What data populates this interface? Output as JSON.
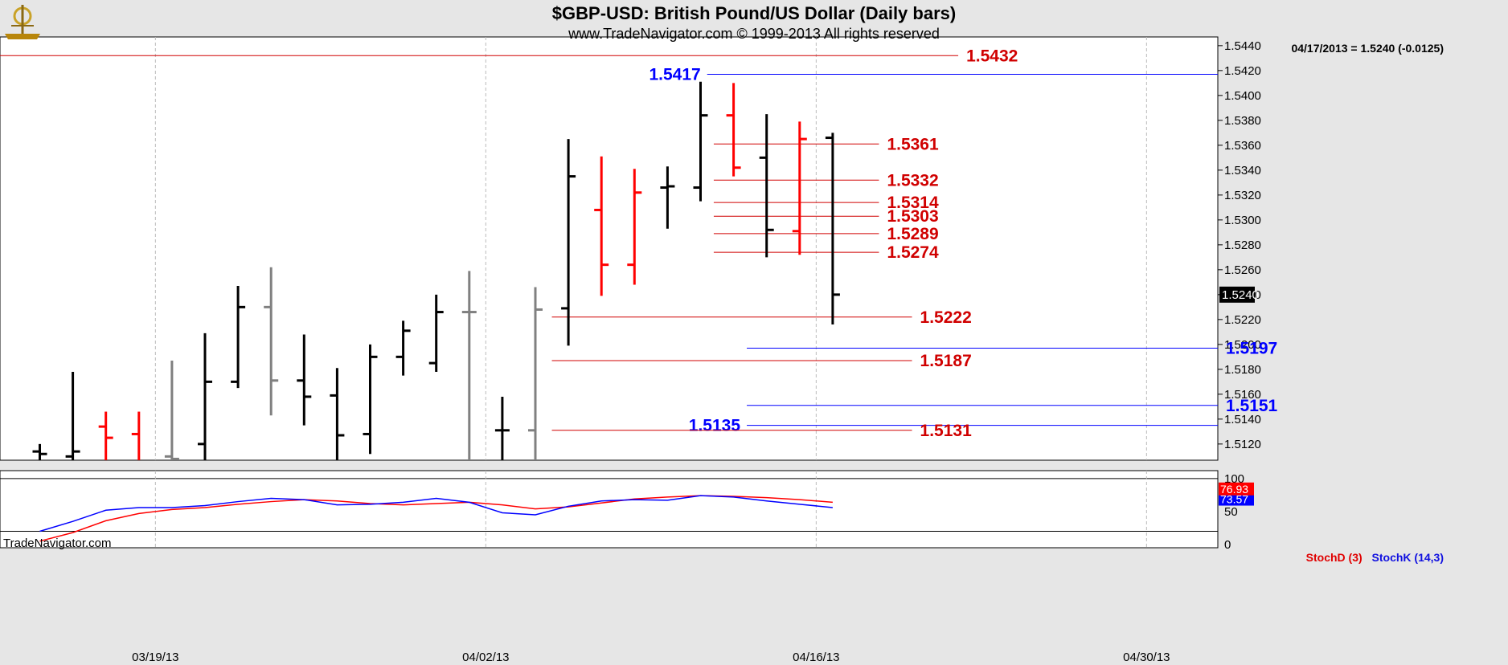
{
  "header": {
    "title": "$GBP-USD:  British Pound/US Dollar  (Daily bars)",
    "subtitle": "www.TradeNavigator.com © 1999-2013 All rights reserved",
    "watermark": "TradeNavigator.com",
    "last_info": "04/17/2013 = 1.5240 (-0.0125)"
  },
  "colors": {
    "background": "#ffffff",
    "frame": "#e6e6e6",
    "bar_up": "#000000",
    "bar_down": "#ff0000",
    "bar_neutral": "#808080",
    "level_red": "#d00000",
    "level_blue": "#0000ff",
    "stoch_d": "#ff0000",
    "stoch_k": "#0000ff"
  },
  "chart_data": {
    "type": "ohlc",
    "price_axis": {
      "ylim": [
        1.5107,
        1.5447
      ],
      "ticks": [
        "1.5120",
        "1.5140",
        "1.5160",
        "1.5180",
        "1.5200",
        "1.5220",
        "1.5240",
        "1.5260",
        "1.5280",
        "1.5300",
        "1.5320",
        "1.5340",
        "1.5360",
        "1.5380",
        "1.5400",
        "1.5420",
        "1.5440"
      ],
      "last_price_label": "1.5240"
    },
    "date_axis": {
      "labels": [
        {
          "label": "03/19/13",
          "bar": 3.5
        },
        {
          "label": "04/02/13",
          "bar": 13.5
        },
        {
          "label": "04/16/13",
          "bar": 23.5
        },
        {
          "label": "04/30/13",
          "bar": 33.5
        }
      ]
    },
    "bars": [
      {
        "o": 1.5114,
        "h": 1.512,
        "l": 1.51,
        "c": 1.5112,
        "color": "up"
      },
      {
        "o": 1.511,
        "h": 1.5178,
        "l": 1.51,
        "c": 1.5114,
        "color": "up"
      },
      {
        "o": 1.5134,
        "h": 1.5146,
        "l": 1.51,
        "c": 1.5125,
        "color": "down"
      },
      {
        "o": 1.5128,
        "h": 1.5146,
        "l": 1.51,
        "c": 1.5104,
        "color": "down"
      },
      {
        "o": 1.511,
        "h": 1.5187,
        "l": 1.51,
        "c": 1.5108,
        "color": "neutral"
      },
      {
        "o": 1.512,
        "h": 1.5209,
        "l": 1.51,
        "c": 1.517,
        "color": "up"
      },
      {
        "o": 1.517,
        "h": 1.5247,
        "l": 1.5165,
        "c": 1.523,
        "color": "up"
      },
      {
        "o": 1.523,
        "h": 1.5262,
        "l": 1.5143,
        "c": 1.5171,
        "color": "neutral"
      },
      {
        "o": 1.5171,
        "h": 1.5208,
        "l": 1.5135,
        "c": 1.5158,
        "color": "up"
      },
      {
        "o": 1.5159,
        "h": 1.5181,
        "l": 1.51,
        "c": 1.5127,
        "color": "up"
      },
      {
        "o": 1.5128,
        "h": 1.52,
        "l": 1.5112,
        "c": 1.519,
        "color": "up"
      },
      {
        "o": 1.519,
        "h": 1.5219,
        "l": 1.5175,
        "c": 1.5211,
        "color": "up"
      },
      {
        "o": 1.5185,
        "h": 1.524,
        "l": 1.5178,
        "c": 1.5226,
        "color": "up"
      },
      {
        "o": 1.5226,
        "h": 1.5259,
        "l": 1.51,
        "c": 1.5226,
        "color": "neutral"
      },
      {
        "o": 1.5131,
        "h": 1.5158,
        "l": 1.51,
        "c": 1.5131,
        "color": "up"
      },
      {
        "o": 1.5131,
        "h": 1.5246,
        "l": 1.5105,
        "c": 1.5228,
        "color": "neutral"
      },
      {
        "o": 1.5229,
        "h": 1.5365,
        "l": 1.5199,
        "c": 1.5335,
        "color": "up"
      },
      {
        "o": 1.5308,
        "h": 1.5351,
        "l": 1.5239,
        "c": 1.5264,
        "color": "down"
      },
      {
        "o": 1.5264,
        "h": 1.5341,
        "l": 1.5248,
        "c": 1.5322,
        "color": "down"
      },
      {
        "o": 1.5326,
        "h": 1.5343,
        "l": 1.5293,
        "c": 1.5327,
        "color": "up"
      },
      {
        "o": 1.5326,
        "h": 1.5411,
        "l": 1.5315,
        "c": 1.5384,
        "color": "up"
      },
      {
        "o": 1.5384,
        "h": 1.541,
        "l": 1.5335,
        "c": 1.5342,
        "color": "down"
      },
      {
        "o": 1.535,
        "h": 1.5385,
        "l": 1.527,
        "c": 1.5292,
        "color": "up"
      },
      {
        "o": 1.5291,
        "h": 1.5379,
        "l": 1.5272,
        "c": 1.5365,
        "color": "down"
      },
      {
        "o": 1.5366,
        "h": 1.537,
        "l": 1.5216,
        "c": 1.524,
        "color": "up"
      }
    ],
    "levels": [
      {
        "label": "1.5432",
        "value": 1.5432,
        "color": "red",
        "from_bar": -1.3,
        "to_bar": 27.8,
        "label_pos": "right"
      },
      {
        "label": "1.5417",
        "value": 1.5417,
        "color": "blue",
        "from_bar": 20.2,
        "to_bar": 38.8,
        "label_pos": "left"
      },
      {
        "label": "1.5361",
        "value": 1.5361,
        "color": "red",
        "from_bar": 20.4,
        "to_bar": 25.4,
        "label_pos": "right"
      },
      {
        "label": "1.5332",
        "value": 1.5332,
        "color": "red",
        "from_bar": 20.4,
        "to_bar": 25.4,
        "label_pos": "right"
      },
      {
        "label": "1.5314",
        "value": 1.5314,
        "color": "red",
        "from_bar": 20.4,
        "to_bar": 25.4,
        "label_pos": "right"
      },
      {
        "label": "1.5303",
        "value": 1.5303,
        "color": "red",
        "from_bar": 20.4,
        "to_bar": 25.4,
        "label_pos": "right"
      },
      {
        "label": "1.5289",
        "value": 1.5289,
        "color": "red",
        "from_bar": 20.4,
        "to_bar": 25.4,
        "label_pos": "right"
      },
      {
        "label": "1.5274",
        "value": 1.5274,
        "color": "red",
        "from_bar": 20.4,
        "to_bar": 25.4,
        "label_pos": "right"
      },
      {
        "label": "1.5222",
        "value": 1.5222,
        "color": "red",
        "from_bar": 15.5,
        "to_bar": 26.4,
        "label_pos": "right"
      },
      {
        "label": "1.5197",
        "value": 1.5197,
        "color": "blue",
        "from_bar": 21.4,
        "to_bar": 38.8,
        "label_pos": "right"
      },
      {
        "label": "1.5187",
        "value": 1.5187,
        "color": "red",
        "from_bar": 15.5,
        "to_bar": 26.4,
        "label_pos": "right"
      },
      {
        "label": "1.5151",
        "value": 1.5151,
        "color": "blue",
        "from_bar": 21.4,
        "to_bar": 38.8,
        "label_pos": "right"
      },
      {
        "label": "1.5135",
        "value": 1.5135,
        "color": "blue",
        "from_bar": 21.4,
        "to_bar": 38.8,
        "label_pos": "left"
      },
      {
        "label": "1.5131",
        "value": 1.5131,
        "color": "red",
        "from_bar": 15.5,
        "to_bar": 26.4,
        "label_pos": "right"
      }
    ],
    "stochastic": {
      "ylim": [
        -5,
        112
      ],
      "ticks": [
        "0",
        "50",
        "100"
      ],
      "series": [
        {
          "name": "StochD (3)",
          "color": "red",
          "values": [
            5,
            18,
            36,
            47,
            53,
            56,
            61,
            65,
            68,
            66,
            62,
            60,
            62,
            64,
            60,
            54,
            57,
            63,
            69,
            72,
            74,
            73,
            71,
            68,
            64
          ]
        },
        {
          "name": "StochK (14,3)",
          "color": "blue",
          "values": [
            20,
            35,
            52,
            56,
            56,
            59,
            65,
            70,
            68,
            60,
            61,
            64,
            70,
            64,
            48,
            45,
            58,
            66,
            68,
            67,
            74,
            72,
            66,
            61,
            56
          ]
        }
      ],
      "value_labels": [
        "76.93",
        "73.57"
      ]
    }
  }
}
